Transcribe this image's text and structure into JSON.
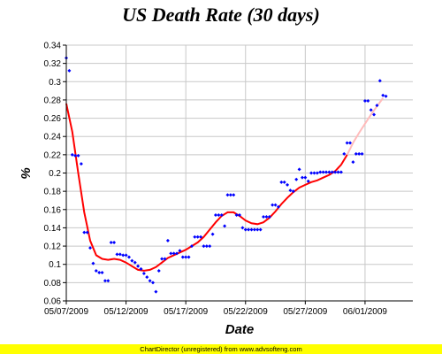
{
  "chart_data": {
    "type": "scatter",
    "title": "US Death Rate (30 days)",
    "xlabel": "Date",
    "ylabel": "%",
    "xlim": [
      "2009-05-07",
      "2009-06-05"
    ],
    "ylim": [
      0.06,
      0.34
    ],
    "y_ticks": [
      "0.06",
      "0.08",
      "0.1",
      "0.12",
      "0.14",
      "0.16",
      "0.18",
      "0.2",
      "0.22",
      "0.24",
      "0.26",
      "0.28",
      "0.3",
      "0.32",
      "0.34"
    ],
    "x_ticks": [
      {
        "date": "2009-05-07",
        "label": "05/07/2009"
      },
      {
        "date": "2009-05-12",
        "label": "05/12/2009"
      },
      {
        "date": "2009-05-17",
        "label": "05/17/2009"
      },
      {
        "date": "2009-05-22",
        "label": "05/22/2009"
      },
      {
        "date": "2009-05-27",
        "label": "05/27/2009"
      },
      {
        "date": "2009-06-01",
        "label": "06/01/2009"
      }
    ],
    "grid": true,
    "points_color": "#0000ff",
    "trend_color": "#ff0000",
    "trend_extension_color": "#ffbbbb",
    "points": [
      [
        "2009-05-07T00:00",
        0.326
      ],
      [
        "2009-05-07T06:00",
        0.312
      ],
      [
        "2009-05-07T12:00",
        0.22
      ],
      [
        "2009-05-07T18:00",
        0.219
      ],
      [
        "2009-05-08T00:00",
        0.219
      ],
      [
        "2009-05-08T06:00",
        0.21
      ],
      [
        "2009-05-08T12:00",
        0.135
      ],
      [
        "2009-05-08T18:00",
        0.135
      ],
      [
        "2009-05-09T00:00",
        0.118
      ],
      [
        "2009-05-09T06:00",
        0.101
      ],
      [
        "2009-05-09T12:00",
        0.093
      ],
      [
        "2009-05-09T18:00",
        0.091
      ],
      [
        "2009-05-10T00:00",
        0.091
      ],
      [
        "2009-05-10T06:00",
        0.082
      ],
      [
        "2009-05-10T12:00",
        0.082
      ],
      [
        "2009-05-10T18:00",
        0.124
      ],
      [
        "2009-05-11T00:00",
        0.124
      ],
      [
        "2009-05-11T06:00",
        0.111
      ],
      [
        "2009-05-11T12:00",
        0.111
      ],
      [
        "2009-05-11T18:00",
        0.11
      ],
      [
        "2009-05-12T00:00",
        0.11
      ],
      [
        "2009-05-12T06:00",
        0.108
      ],
      [
        "2009-05-12T12:00",
        0.104
      ],
      [
        "2009-05-12T18:00",
        0.102
      ],
      [
        "2009-05-13T00:00",
        0.098
      ],
      [
        "2009-05-13T06:00",
        0.095
      ],
      [
        "2009-05-13T12:00",
        0.09
      ],
      [
        "2009-05-13T18:00",
        0.086
      ],
      [
        "2009-05-14T00:00",
        0.082
      ],
      [
        "2009-05-14T06:00",
        0.08
      ],
      [
        "2009-05-14T12:00",
        0.07
      ],
      [
        "2009-05-14T18:00",
        0.093
      ],
      [
        "2009-05-15T00:00",
        0.106
      ],
      [
        "2009-05-15T06:00",
        0.106
      ],
      [
        "2009-05-15T12:00",
        0.126
      ],
      [
        "2009-05-15T18:00",
        0.112
      ],
      [
        "2009-05-16T00:00",
        0.112
      ],
      [
        "2009-05-16T06:00",
        0.112
      ],
      [
        "2009-05-16T12:00",
        0.115
      ],
      [
        "2009-05-16T18:00",
        0.108
      ],
      [
        "2009-05-17T00:00",
        0.108
      ],
      [
        "2009-05-17T06:00",
        0.108
      ],
      [
        "2009-05-17T12:00",
        0.12
      ],
      [
        "2009-05-17T18:00",
        0.13
      ],
      [
        "2009-05-18T00:00",
        0.13
      ],
      [
        "2009-05-18T06:00",
        0.13
      ],
      [
        "2009-05-18T12:00",
        0.12
      ],
      [
        "2009-05-18T18:00",
        0.12
      ],
      [
        "2009-05-19T00:00",
        0.12
      ],
      [
        "2009-05-19T06:00",
        0.133
      ],
      [
        "2009-05-19T12:00",
        0.154
      ],
      [
        "2009-05-19T18:00",
        0.154
      ],
      [
        "2009-05-20T00:00",
        0.154
      ],
      [
        "2009-05-20T06:00",
        0.142
      ],
      [
        "2009-05-20T12:00",
        0.176
      ],
      [
        "2009-05-20T18:00",
        0.176
      ],
      [
        "2009-05-21T00:00",
        0.176
      ],
      [
        "2009-05-21T06:00",
        0.154
      ],
      [
        "2009-05-21T12:00",
        0.154
      ],
      [
        "2009-05-21T18:00",
        0.14
      ],
      [
        "2009-05-22T00:00",
        0.138
      ],
      [
        "2009-05-22T06:00",
        0.138
      ],
      [
        "2009-05-22T12:00",
        0.138
      ],
      [
        "2009-05-22T18:00",
        0.138
      ],
      [
        "2009-05-23T00:00",
        0.138
      ],
      [
        "2009-05-23T06:00",
        0.138
      ],
      [
        "2009-05-23T12:00",
        0.152
      ],
      [
        "2009-05-23T18:00",
        0.152
      ],
      [
        "2009-05-24T00:00",
        0.152
      ],
      [
        "2009-05-24T06:00",
        0.165
      ],
      [
        "2009-05-24T12:00",
        0.165
      ],
      [
        "2009-05-24T18:00",
        0.163
      ],
      [
        "2009-05-25T00:00",
        0.19
      ],
      [
        "2009-05-25T06:00",
        0.19
      ],
      [
        "2009-05-25T12:00",
        0.187
      ],
      [
        "2009-05-25T18:00",
        0.181
      ],
      [
        "2009-05-26T00:00",
        0.18
      ],
      [
        "2009-05-26T06:00",
        0.193
      ],
      [
        "2009-05-26T12:00",
        0.204
      ],
      [
        "2009-05-26T18:00",
        0.195
      ],
      [
        "2009-05-27T00:00",
        0.195
      ],
      [
        "2009-05-27T06:00",
        0.191
      ],
      [
        "2009-05-27T12:00",
        0.2
      ],
      [
        "2009-05-27T18:00",
        0.2
      ],
      [
        "2009-05-28T00:00",
        0.2
      ],
      [
        "2009-05-28T06:00",
        0.201
      ],
      [
        "2009-05-28T12:00",
        0.201
      ],
      [
        "2009-05-28T18:00",
        0.201
      ],
      [
        "2009-05-29T00:00",
        0.201
      ],
      [
        "2009-05-29T06:00",
        0.201
      ],
      [
        "2009-05-29T12:00",
        0.201
      ],
      [
        "2009-05-29T18:00",
        0.201
      ],
      [
        "2009-05-30T00:00",
        0.201
      ],
      [
        "2009-05-30T06:00",
        0.221
      ],
      [
        "2009-05-30T12:00",
        0.233
      ],
      [
        "2009-05-30T18:00",
        0.233
      ],
      [
        "2009-05-31T00:00",
        0.212
      ],
      [
        "2009-05-31T06:00",
        0.221
      ],
      [
        "2009-05-31T12:00",
        0.221
      ],
      [
        "2009-05-31T18:00",
        0.221
      ],
      [
        "2009-06-01T00:00",
        0.279
      ],
      [
        "2009-06-01T06:00",
        0.279
      ],
      [
        "2009-06-01T12:00",
        0.269
      ],
      [
        "2009-06-01T18:00",
        0.264
      ],
      [
        "2009-06-02T00:00",
        0.274
      ],
      [
        "2009-06-02T06:00",
        0.301
      ],
      [
        "2009-06-02T12:00",
        0.285
      ],
      [
        "2009-06-02T18:00",
        0.284
      ]
    ],
    "trend": [
      [
        "2009-05-07T00:00",
        0.276
      ],
      [
        "2009-05-07T12:00",
        0.245
      ],
      [
        "2009-05-08T00:00",
        0.2
      ],
      [
        "2009-05-08T12:00",
        0.157
      ],
      [
        "2009-05-09T00:00",
        0.126
      ],
      [
        "2009-05-09T12:00",
        0.11
      ],
      [
        "2009-05-10T00:00",
        0.106
      ],
      [
        "2009-05-10T12:00",
        0.105
      ],
      [
        "2009-05-11T00:00",
        0.106
      ],
      [
        "2009-05-11T12:00",
        0.105
      ],
      [
        "2009-05-12T00:00",
        0.102
      ],
      [
        "2009-05-12T12:00",
        0.098
      ],
      [
        "2009-05-13T00:00",
        0.094
      ],
      [
        "2009-05-13T12:00",
        0.093
      ],
      [
        "2009-05-14T00:00",
        0.094
      ],
      [
        "2009-05-14T12:00",
        0.097
      ],
      [
        "2009-05-15T00:00",
        0.102
      ],
      [
        "2009-05-15T12:00",
        0.107
      ],
      [
        "2009-05-16T00:00",
        0.11
      ],
      [
        "2009-05-16T12:00",
        0.113
      ],
      [
        "2009-05-17T00:00",
        0.116
      ],
      [
        "2009-05-17T12:00",
        0.12
      ],
      [
        "2009-05-18T00:00",
        0.124
      ],
      [
        "2009-05-18T12:00",
        0.13
      ],
      [
        "2009-05-19T00:00",
        0.138
      ],
      [
        "2009-05-19T12:00",
        0.146
      ],
      [
        "2009-05-20T00:00",
        0.153
      ],
      [
        "2009-05-20T12:00",
        0.157
      ],
      [
        "2009-05-21T00:00",
        0.157
      ],
      [
        "2009-05-21T12:00",
        0.153
      ],
      [
        "2009-05-22T00:00",
        0.148
      ],
      [
        "2009-05-22T12:00",
        0.145
      ],
      [
        "2009-05-23T00:00",
        0.144
      ],
      [
        "2009-05-23T12:00",
        0.146
      ],
      [
        "2009-05-24T00:00",
        0.151
      ],
      [
        "2009-05-24T12:00",
        0.158
      ],
      [
        "2009-05-25T00:00",
        0.166
      ],
      [
        "2009-05-25T12:00",
        0.173
      ],
      [
        "2009-05-26T00:00",
        0.179
      ],
      [
        "2009-05-26T12:00",
        0.184
      ],
      [
        "2009-05-27T00:00",
        0.187
      ],
      [
        "2009-05-27T12:00",
        0.19
      ],
      [
        "2009-05-28T00:00",
        0.192
      ],
      [
        "2009-05-28T12:00",
        0.195
      ],
      [
        "2009-05-29T00:00",
        0.198
      ],
      [
        "2009-05-29T12:00",
        0.202
      ],
      [
        "2009-05-30T00:00",
        0.209
      ],
      [
        "2009-05-30T12:00",
        0.22
      ]
    ],
    "trend_extension": [
      [
        "2009-05-30T12:00",
        0.22
      ],
      [
        "2009-05-31T00:00",
        0.233
      ],
      [
        "2009-05-31T12:00",
        0.244
      ],
      [
        "2009-06-01T00:00",
        0.254
      ],
      [
        "2009-06-01T12:00",
        0.264
      ],
      [
        "2009-06-02T00:00",
        0.273
      ],
      [
        "2009-06-02T12:00",
        0.282
      ]
    ]
  },
  "footer": {
    "text": "ChartDirector (unregistered) from www.advsofteng.com",
    "color": "#ffff00"
  }
}
